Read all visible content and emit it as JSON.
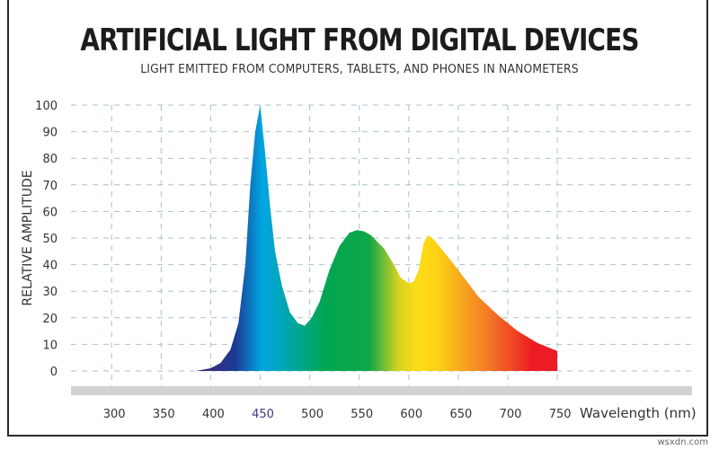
{
  "chart_data": {
    "type": "area",
    "title": "ARTIFICIAL LIGHT FROM DIGITAL DEVICES",
    "subtitle": "LIGHT EMITTED FROM COMPUTERS, TABLETS, AND PHONES IN NANOMETERS",
    "xlabel": "Wavelength (nm)",
    "ylabel": "RELATIVE AMPLITUDE",
    "xlim": [
      259,
      886
    ],
    "ylim": [
      0,
      100
    ],
    "xticks": [
      300,
      350,
      400,
      450,
      500,
      550,
      600,
      650,
      700,
      750
    ],
    "yticks": [
      0,
      10,
      20,
      30,
      40,
      50,
      60,
      70,
      80,
      90,
      100
    ],
    "highlight_tick": 450,
    "grid": true,
    "x": [
      385,
      400,
      410,
      420,
      428,
      435,
      440,
      445,
      450,
      455,
      460,
      465,
      472,
      480,
      488,
      495,
      502,
      510,
      520,
      530,
      540,
      548,
      555,
      562,
      575,
      585,
      592,
      600,
      605,
      610,
      615,
      619,
      625,
      635,
      650,
      670,
      690,
      710,
      730,
      750
    ],
    "values": [
      0,
      1,
      3,
      8,
      18,
      40,
      70,
      90,
      100,
      82,
      62,
      45,
      32,
      22,
      18,
      17,
      20,
      26,
      38,
      47,
      52,
      53,
      52.5,
      51,
      46,
      40,
      35,
      33,
      33.5,
      38,
      48,
      51,
      49.5,
      45,
      38,
      28,
      21,
      15,
      10.5,
      7.5
    ],
    "spectrum_colors": [
      {
        "nm": 390,
        "color": "#3a2a78"
      },
      {
        "nm": 425,
        "color": "#1c3b94"
      },
      {
        "nm": 452,
        "color": "#00a6e2"
      },
      {
        "nm": 485,
        "color": "#00a59a"
      },
      {
        "nm": 515,
        "color": "#00a651"
      },
      {
        "nm": 560,
        "color": "#0ea64a"
      },
      {
        "nm": 590,
        "color": "#d8d321"
      },
      {
        "nm": 610,
        "color": "#ffdd15"
      },
      {
        "nm": 630,
        "color": "#fdd017"
      },
      {
        "nm": 680,
        "color": "#f27a25"
      },
      {
        "nm": 725,
        "color": "#ec1c24"
      },
      {
        "nm": 750,
        "color": "#ec1c24"
      }
    ],
    "grid_color": "#a9c2cc",
    "baseline_bar_color": "#d1d2d4",
    "highlight_tick_color": "#3b3a8c"
  },
  "credit": "wsxdn.com"
}
